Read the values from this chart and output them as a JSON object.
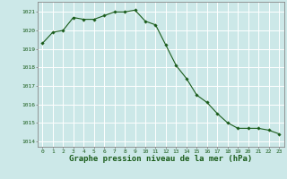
{
  "x": [
    0,
    1,
    2,
    3,
    4,
    5,
    6,
    7,
    8,
    9,
    10,
    11,
    12,
    13,
    14,
    15,
    16,
    17,
    18,
    19,
    20,
    21,
    22,
    23
  ],
  "y": [
    1019.3,
    1019.9,
    1020.0,
    1020.7,
    1020.6,
    1020.6,
    1020.8,
    1021.0,
    1021.0,
    1021.1,
    1020.5,
    1020.3,
    1019.2,
    1018.1,
    1017.4,
    1016.5,
    1016.1,
    1015.5,
    1015.0,
    1014.7,
    1014.7,
    1014.7,
    1014.6,
    1014.4
  ],
  "line_color": "#1a5c1a",
  "marker": "D",
  "marker_size": 1.8,
  "line_width": 0.8,
  "bg_color": "#cce8e8",
  "grid_color": "#ffffff",
  "xlabel": "Graphe pression niveau de la mer (hPa)",
  "xlabel_fontsize": 6.5,
  "xlabel_color": "#1a5c1a",
  "ytick_vals": [
    1014,
    1015,
    1016,
    1017,
    1018,
    1019,
    1020,
    1021
  ],
  "ylim": [
    1013.7,
    1021.55
  ],
  "xlim": [
    -0.5,
    23.5
  ],
  "xtick_fontsize": 4.5,
  "ytick_fontsize": 4.5,
  "tick_color": "#1a5c1a",
  "spine_color": "#888888"
}
